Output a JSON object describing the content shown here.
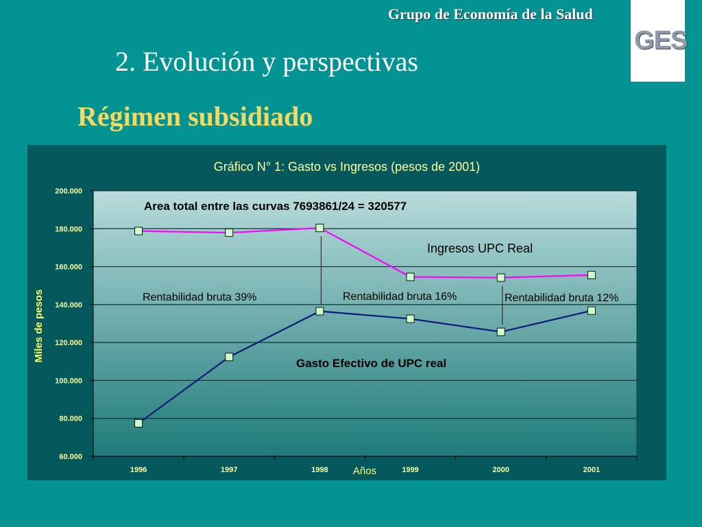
{
  "header": {
    "group_name": "Grupo de Economía de la Salud",
    "logo_text": "GES"
  },
  "slide": {
    "title": "2. Evolución y perspectivas",
    "subtitle": "Régimen subsidiado"
  },
  "colors": {
    "background": "#049393",
    "chart_panel": "#05595d",
    "plot_top": "#b9dcdc",
    "plot_bottom": "#1e7a79",
    "ingresos_line": "#ff00ff",
    "gasto_line": "#0a1a7a",
    "marker_fill": "#ccffcc",
    "title_yellow": "#ffff99",
    "subtitle_gold": "#f4d860"
  },
  "chart_data": {
    "type": "line",
    "title": "Gráfico N° 1: Gasto vs Ingresos (pesos de 2001)",
    "xlabel": "Años",
    "ylabel": "Miles de pesos",
    "categories": [
      "1996",
      "1997",
      "1998",
      "1999",
      "2000",
      "2001"
    ],
    "ylim": [
      60000,
      200000
    ],
    "yticks": [
      60000,
      80000,
      100000,
      120000,
      140000,
      160000,
      180000,
      200000
    ],
    "ytick_labels": [
      "60.000",
      "80.000",
      "100.000",
      "120.000",
      "140.000",
      "160.000",
      "180.000",
      "200.000"
    ],
    "grid": true,
    "series": [
      {
        "name": "Ingresos UPC Real",
        "values": [
          178800,
          177900,
          180400,
          154600,
          154200,
          155600
        ]
      },
      {
        "name": "Gasto Efectivo de UPC real",
        "values": [
          77400,
          112400,
          136500,
          132500,
          125600,
          136800
        ]
      }
    ],
    "annotations": {
      "area_note": "Area  total entre las curvas 7693861/24 = 320577",
      "rentabilidad": [
        {
          "text": "Rentabilidad bruta  39%"
        },
        {
          "text": "Rentabilidad bruta  16%"
        },
        {
          "text": "Rentabilidad bruta  12%"
        }
      ]
    }
  }
}
